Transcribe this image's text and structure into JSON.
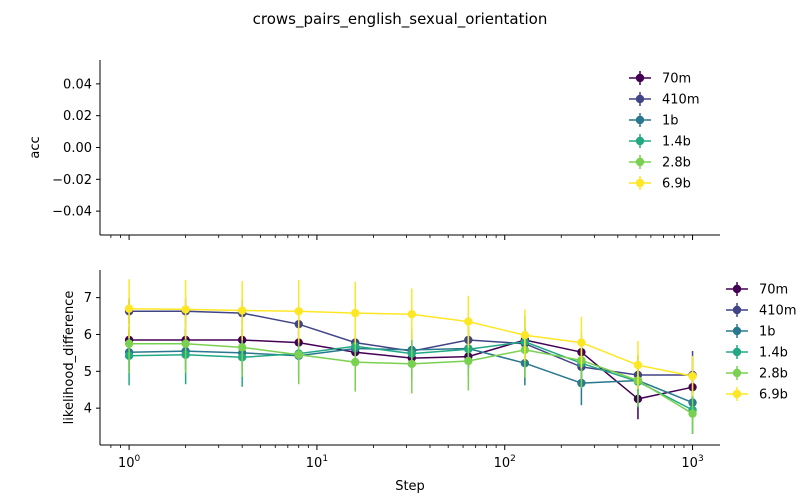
{
  "figure_title": "crows_pairs_english_sexual_orientation",
  "chart_data": [
    {
      "type": "line",
      "title": "",
      "xlabel": "",
      "ylabel": "acc",
      "xscale": "log",
      "xlim": [
        0.7,
        1400
      ],
      "ylim": [
        -0.055,
        0.055
      ],
      "yticks": [
        0.04,
        0.02,
        0.0,
        -0.02,
        -0.04
      ],
      "ytick_labels": [
        "0.04",
        "0.02",
        "0.00",
        "−0.02",
        "−0.04"
      ],
      "legend": {
        "position": "top-right",
        "entries": [
          "70m",
          "410m",
          "1b",
          "1.4b",
          "2.8b",
          "6.9b"
        ]
      },
      "series": []
    },
    {
      "type": "line",
      "title": "",
      "xlabel": "Step",
      "ylabel": "likelihood_difference",
      "xscale": "log",
      "xlim": [
        0.7,
        1400
      ],
      "ylim": [
        3.0,
        7.75
      ],
      "yticks": [
        4,
        5,
        6,
        7
      ],
      "ytick_labels": [
        "4",
        "5",
        "6",
        "7"
      ],
      "xtick_labels": [
        {
          "base": "10",
          "exp": "0"
        },
        {
          "base": "10",
          "exp": "1"
        },
        {
          "base": "10",
          "exp": "2"
        },
        {
          "base": "10",
          "exp": "3"
        }
      ],
      "legend": {
        "position": "right, outside plot",
        "entries": [
          "70m",
          "410m",
          "1b",
          "1.4b",
          "2.8b",
          "6.9b"
        ]
      },
      "x": [
        1,
        2,
        4,
        8,
        16,
        32,
        64,
        128,
        256,
        512,
        1000
      ],
      "series": [
        {
          "name": "70m",
          "color": "#440154",
          "values": [
            5.85,
            5.85,
            5.85,
            5.78,
            5.52,
            5.36,
            5.4,
            5.85,
            5.52,
            4.25,
            4.57
          ],
          "err": [
            0.3,
            0.3,
            0.3,
            0.3,
            0.3,
            0.3,
            0.3,
            0.3,
            0.3,
            0.55,
            0.3
          ]
        },
        {
          "name": "410m",
          "color": "#414487",
          "values": [
            6.63,
            6.63,
            6.58,
            6.28,
            5.78,
            5.55,
            5.85,
            5.75,
            5.12,
            4.9,
            4.9
          ],
          "err": [
            0.35,
            0.35,
            0.35,
            0.35,
            0.35,
            0.35,
            0.35,
            0.35,
            0.35,
            0.35,
            0.65
          ]
        },
        {
          "name": "1b",
          "color": "#2a788e",
          "values": [
            5.52,
            5.55,
            5.5,
            5.42,
            5.62,
            5.58,
            5.62,
            5.22,
            4.68,
            4.75,
            4.15
          ],
          "err": [
            0.5,
            0.5,
            0.5,
            0.5,
            0.5,
            0.5,
            0.5,
            0.6,
            0.6,
            0.45,
            0.4
          ]
        },
        {
          "name": "1.4b",
          "color": "#22a884",
          "values": [
            5.42,
            5.45,
            5.38,
            5.48,
            5.68,
            5.48,
            5.6,
            5.8,
            5.22,
            4.72,
            3.95
          ],
          "err": [
            0.8,
            0.8,
            0.8,
            0.7,
            0.7,
            0.7,
            0.7,
            0.7,
            0.7,
            0.7,
            0.65
          ]
        },
        {
          "name": "2.8b",
          "color": "#7ad151",
          "values": [
            5.75,
            5.75,
            5.65,
            5.45,
            5.25,
            5.2,
            5.28,
            5.58,
            5.3,
            4.75,
            3.85
          ],
          "err": [
            0.8,
            0.8,
            0.8,
            0.8,
            0.8,
            0.8,
            0.8,
            0.75,
            0.75,
            0.7,
            0.55
          ]
        },
        {
          "name": "6.9b",
          "color": "#fde725",
          "values": [
            6.7,
            6.68,
            6.65,
            6.63,
            6.58,
            6.55,
            6.35,
            5.98,
            5.78,
            5.17,
            4.87
          ],
          "err": [
            0.8,
            0.8,
            0.8,
            0.85,
            0.85,
            0.7,
            0.7,
            0.7,
            0.7,
            0.65,
            0.55
          ]
        }
      ]
    }
  ]
}
